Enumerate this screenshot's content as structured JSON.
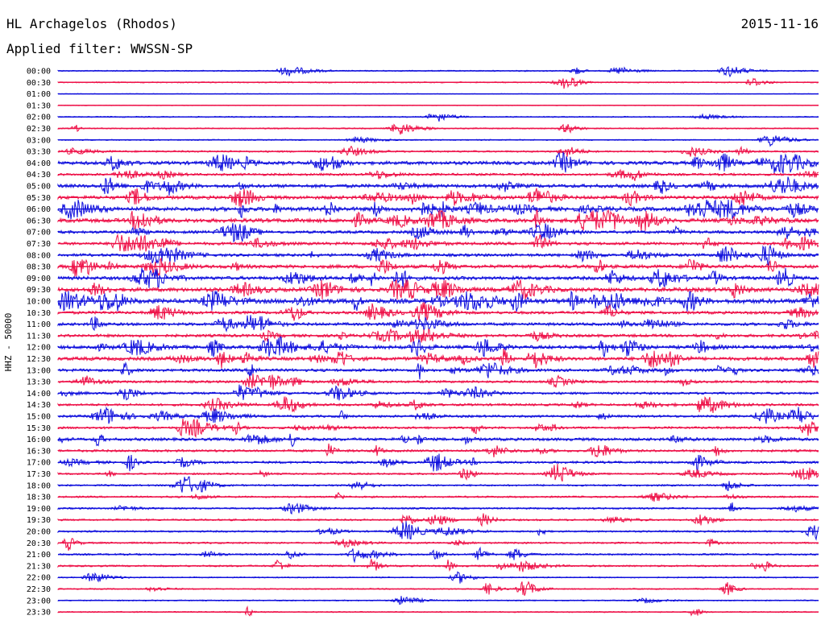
{
  "header": {
    "title": "HL Archagelos (Rhodos)",
    "date": "2015-11-16",
    "filter": "Applied filter: WWSSN-SP"
  },
  "colors": {
    "even_row": "#1010dd",
    "odd_row": "#ee1148"
  },
  "chart_data": {
    "type": "line",
    "title": "HL Archagelos (Rhodos)",
    "ylabel": "HHZ - 50000",
    "grid": false,
    "rows": [
      "00:00",
      "00:30",
      "01:00",
      "01:30",
      "02:00",
      "02:30",
      "03:00",
      "03:30",
      "04:00",
      "04:30",
      "05:00",
      "05:30",
      "06:00",
      "06:30",
      "07:00",
      "07:30",
      "08:00",
      "08:30",
      "09:00",
      "09:30",
      "10:00",
      "10:30",
      "11:00",
      "11:30",
      "12:00",
      "12:30",
      "13:00",
      "13:30",
      "14:00",
      "14:30",
      "15:00",
      "15:30",
      "16:00",
      "16:30",
      "17:00",
      "17:30",
      "18:00",
      "18:30",
      "19:00",
      "19:30",
      "20:00",
      "20:30",
      "21:00",
      "21:30",
      "22:00",
      "22:30",
      "23:00",
      "23:30"
    ],
    "noise_level": [
      1,
      1,
      0,
      0,
      1,
      1,
      1,
      2,
      5,
      3,
      5,
      5,
      6,
      6,
      4,
      4,
      4,
      5,
      5,
      6,
      7,
      4,
      4,
      4,
      5,
      5,
      4,
      3,
      3,
      3,
      3,
      3,
      4,
      3,
      3,
      2,
      2,
      2,
      2,
      2,
      2,
      2,
      2,
      2,
      1,
      1,
      1,
      1
    ]
  }
}
